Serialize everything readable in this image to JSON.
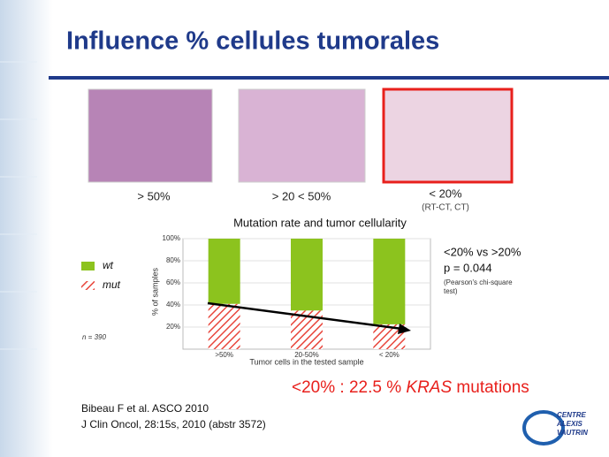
{
  "slide": {
    "title": "Influence % cellules tumorales",
    "images": [
      {
        "caption": "> 50%"
      },
      {
        "caption": "> 20 < 50%"
      },
      {
        "caption": "< 20%",
        "subcaption": "(RT-CT, CT)"
      }
    ],
    "sample_size": "n = 390",
    "stats": {
      "comparison": "<20% vs >20%",
      "p_value": "p = 0.044",
      "test": [
        "(Pearson's chi-square",
        "test)"
      ]
    },
    "conclusion": [
      "<20% : 22.5 % ",
      "KRAS",
      " mutations"
    ],
    "references": [
      "Bibeau F et al. ASCO 2010",
      "J Clin Oncol, 28:15s, 2010 (abstr 3572)"
    ],
    "logo": [
      "CENTRE",
      "ALEXIS",
      "VAUTRIN"
    ]
  },
  "chart_data": {
    "type": "stacked_bar",
    "title": "Mutation rate and tumor cellularity",
    "x_label": "Tumor cells in the tested sample",
    "y_label": "% of samples",
    "categories": [
      ">50%",
      "20-50%",
      "< 20%"
    ],
    "series": [
      {
        "name": "mut",
        "color": "#e8463c",
        "values": [
          41,
          35,
          22.5
        ]
      },
      {
        "name": "wt",
        "color": "#8cc31e",
        "values": [
          59,
          65,
          77.5
        ]
      }
    ],
    "ylim": [
      0,
      100
    ],
    "yticks": [
      {
        "value": 20,
        "label": "20%"
      },
      {
        "value": 40,
        "label": "40%"
      },
      {
        "value": 60,
        "label": "60%"
      },
      {
        "value": 80,
        "label": "80%"
      },
      {
        "value": 100,
        "label": "100%"
      }
    ]
  }
}
